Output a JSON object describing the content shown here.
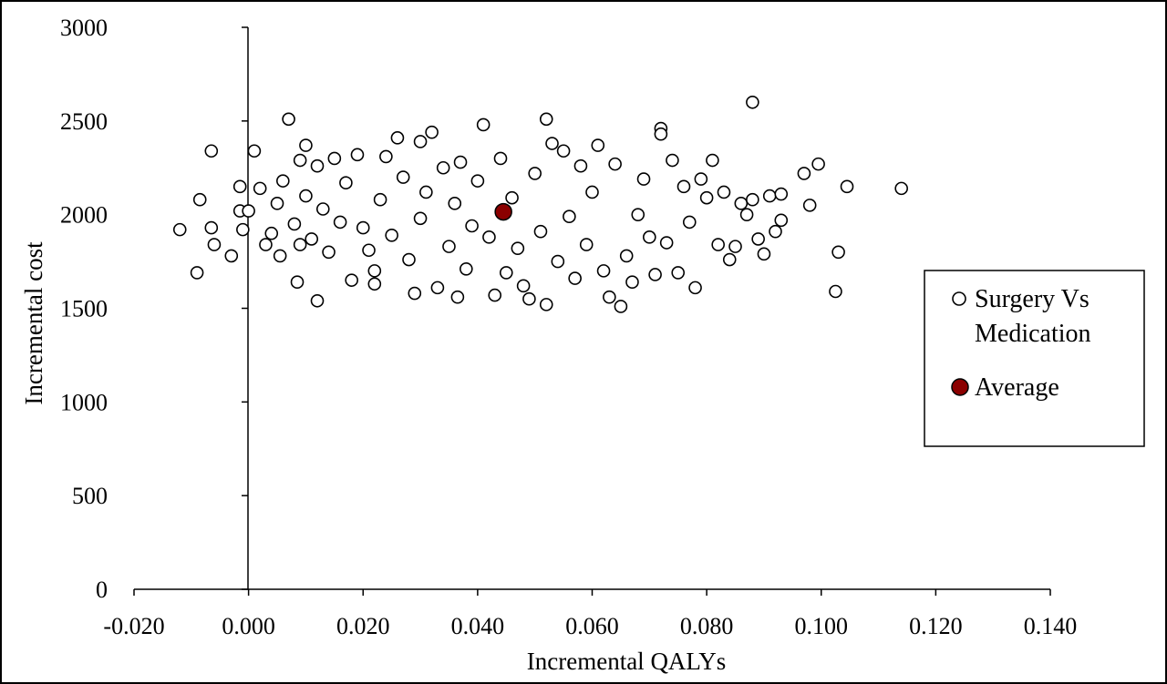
{
  "chart_data": {
    "type": "scatter",
    "title": "",
    "xlabel": "Incremental QALYs",
    "ylabel": "Incremental cost",
    "xlim": [
      -0.02,
      0.14
    ],
    "ylim": [
      0,
      3000
    ],
    "x_ticks": [
      "-0.020",
      "0.000",
      "0.020",
      "0.040",
      "0.060",
      "0.080",
      "0.100",
      "0.120",
      "0.140"
    ],
    "y_ticks": [
      "0",
      "500",
      "1000",
      "1500",
      "2000",
      "2500",
      "3000"
    ],
    "grid": false,
    "legend_position": "right",
    "colors": {
      "average": "#8b0000",
      "marker_edge": "#000000",
      "marker_fill": "#ffffff"
    },
    "series": [
      {
        "name": "Surgery Vs Medication",
        "legend_label_lines": [
          "Surgery Vs",
          "Medication"
        ],
        "marker": "open-circle",
        "points": [
          [
            -0.012,
            1920
          ],
          [
            -0.009,
            1690
          ],
          [
            -0.0085,
            2080
          ],
          [
            -0.0065,
            2340
          ],
          [
            -0.0065,
            1930
          ],
          [
            -0.006,
            1840
          ],
          [
            -0.003,
            1780
          ],
          [
            -0.0015,
            2020
          ],
          [
            -0.0015,
            2150
          ],
          [
            -0.001,
            1920
          ],
          [
            0.0,
            2020
          ],
          [
            0.001,
            2340
          ],
          [
            0.002,
            2140
          ],
          [
            0.003,
            1840
          ],
          [
            0.004,
            1900
          ],
          [
            0.005,
            2060
          ],
          [
            0.0055,
            1780
          ],
          [
            0.006,
            2180
          ],
          [
            0.007,
            2510
          ],
          [
            0.008,
            1950
          ],
          [
            0.0085,
            1640
          ],
          [
            0.009,
            1840
          ],
          [
            0.009,
            2290
          ],
          [
            0.01,
            2370
          ],
          [
            0.01,
            2100
          ],
          [
            0.011,
            1870
          ],
          [
            0.012,
            1540
          ],
          [
            0.012,
            2260
          ],
          [
            0.013,
            2030
          ],
          [
            0.014,
            1800
          ],
          [
            0.015,
            2300
          ],
          [
            0.016,
            1960
          ],
          [
            0.017,
            2170
          ],
          [
            0.018,
            1650
          ],
          [
            0.019,
            2320
          ],
          [
            0.02,
            1930
          ],
          [
            0.021,
            1810
          ],
          [
            0.022,
            1700
          ],
          [
            0.022,
            1630
          ],
          [
            0.023,
            2080
          ],
          [
            0.024,
            2310
          ],
          [
            0.025,
            1890
          ],
          [
            0.026,
            2410
          ],
          [
            0.027,
            2200
          ],
          [
            0.028,
            1760
          ],
          [
            0.029,
            1580
          ],
          [
            0.03,
            2390
          ],
          [
            0.03,
            1980
          ],
          [
            0.031,
            2120
          ],
          [
            0.032,
            2440
          ],
          [
            0.033,
            1610
          ],
          [
            0.034,
            2250
          ],
          [
            0.035,
            1830
          ],
          [
            0.036,
            2060
          ],
          [
            0.0365,
            1560
          ],
          [
            0.037,
            2280
          ],
          [
            0.038,
            1710
          ],
          [
            0.039,
            1940
          ],
          [
            0.04,
            2180
          ],
          [
            0.041,
            2480
          ],
          [
            0.042,
            1880
          ],
          [
            0.043,
            1570
          ],
          [
            0.044,
            2300
          ],
          [
            0.045,
            1690
          ],
          [
            0.046,
            2090
          ],
          [
            0.047,
            1820
          ],
          [
            0.048,
            1620
          ],
          [
            0.049,
            1550
          ],
          [
            0.05,
            2220
          ],
          [
            0.051,
            1910
          ],
          [
            0.052,
            1520
          ],
          [
            0.052,
            2510
          ],
          [
            0.053,
            2380
          ],
          [
            0.054,
            1750
          ],
          [
            0.055,
            2340
          ],
          [
            0.056,
            1990
          ],
          [
            0.057,
            1660
          ],
          [
            0.058,
            2260
          ],
          [
            0.059,
            1840
          ],
          [
            0.06,
            2120
          ],
          [
            0.061,
            2370
          ],
          [
            0.062,
            1700
          ],
          [
            0.063,
            1560
          ],
          [
            0.064,
            2270
          ],
          [
            0.065,
            1510
          ],
          [
            0.066,
            1780
          ],
          [
            0.067,
            1640
          ],
          [
            0.068,
            2000
          ],
          [
            0.069,
            2190
          ],
          [
            0.07,
            1880
          ],
          [
            0.071,
            1680
          ],
          [
            0.072,
            2460
          ],
          [
            0.072,
            2430
          ],
          [
            0.073,
            1850
          ],
          [
            0.074,
            2290
          ],
          [
            0.075,
            1690
          ],
          [
            0.076,
            2150
          ],
          [
            0.077,
            1960
          ],
          [
            0.078,
            1610
          ],
          [
            0.079,
            2190
          ],
          [
            0.08,
            2090
          ],
          [
            0.081,
            2290
          ],
          [
            0.082,
            1840
          ],
          [
            0.083,
            2120
          ],
          [
            0.084,
            1760
          ],
          [
            0.085,
            1830
          ],
          [
            0.086,
            2060
          ],
          [
            0.087,
            2000
          ],
          [
            0.088,
            2600
          ],
          [
            0.088,
            2080
          ],
          [
            0.089,
            1870
          ],
          [
            0.09,
            1790
          ],
          [
            0.091,
            2100
          ],
          [
            0.092,
            1910
          ],
          [
            0.093,
            1970
          ],
          [
            0.093,
            2110
          ],
          [
            0.097,
            2220
          ],
          [
            0.098,
            2050
          ],
          [
            0.0995,
            2270
          ],
          [
            0.1025,
            1590
          ],
          [
            0.103,
            1800
          ],
          [
            0.1045,
            2150
          ],
          [
            0.114,
            2140
          ]
        ]
      },
      {
        "name": "Average",
        "marker": "filled-circle",
        "points": [
          [
            0.0445,
            2015
          ]
        ]
      }
    ]
  }
}
